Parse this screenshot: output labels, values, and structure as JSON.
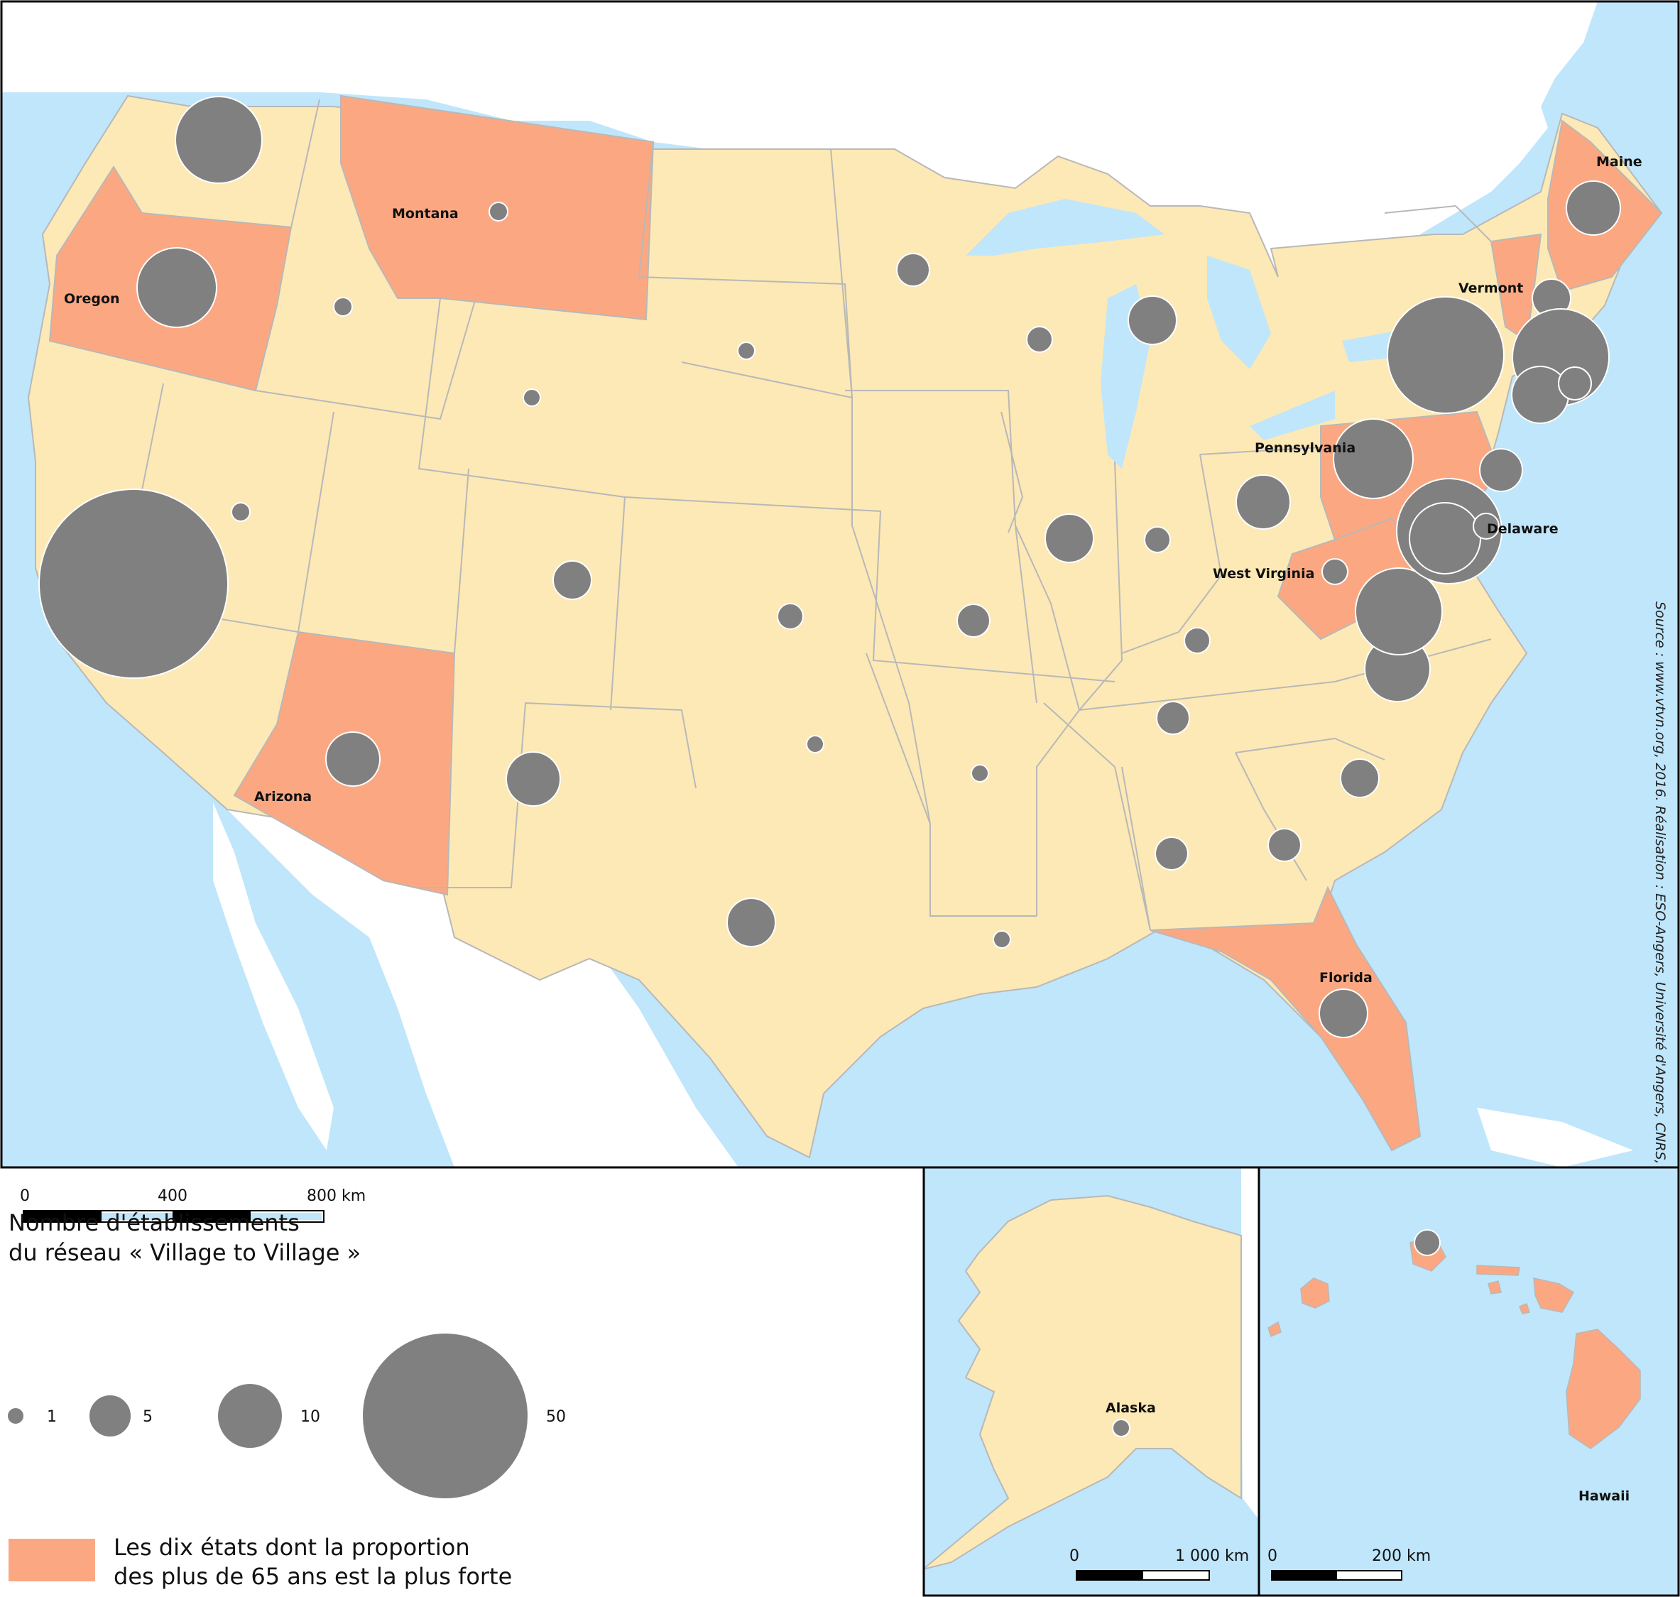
{
  "legend": {
    "title_line1": "Nombre d'établissements",
    "title_line2": "du réseau « Village to Village »",
    "circle_values": [
      "1",
      "5",
      "10",
      "50"
    ],
    "highlight_line1": "Les dix états dont la proportion",
    "highlight_line2": "des plus de 65 ans est la plus forte"
  },
  "source": "Source : www.vtvn.org, 2016. Réalisation : ESO-Angers, Université d'Angers, CNRS, 2016.",
  "colors": {
    "ocean": "#bfe6fb",
    "state_fill": "#fde9b6",
    "highlight_fill": "#fba882",
    "circle_fill": "#808080",
    "border": "#b8b8b8"
  },
  "state_labels": {
    "oregon": "Oregon",
    "montana": "Montana",
    "arizona": "Arizona",
    "maine": "Maine",
    "vermont": "Vermont",
    "pennsylvania": "Pennsylvania",
    "delaware": "Delaware",
    "west_virginia": "West Virginia",
    "florida": "Florida",
    "alaska": "Alaska",
    "hawaii": "Hawaii"
  },
  "scales": {
    "main": {
      "start": "0",
      "mid": "400",
      "end": "800 km"
    },
    "alaska": {
      "start": "0",
      "end": "1 000 km"
    },
    "hawaii": {
      "start": "0",
      "end": "200 km"
    }
  }
}
